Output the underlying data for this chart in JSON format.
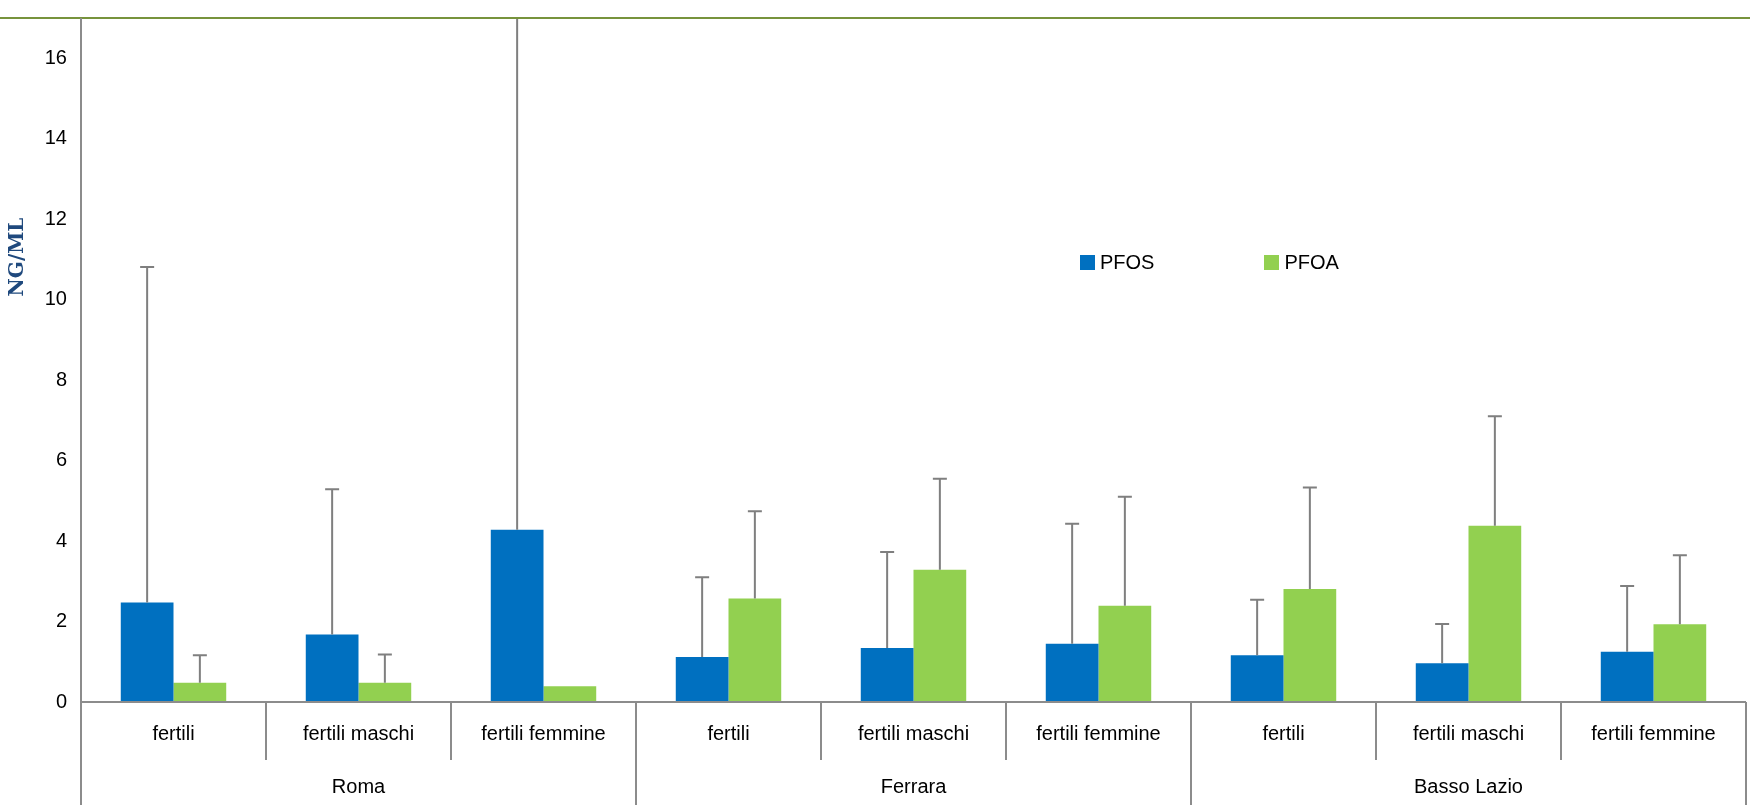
{
  "chart_data": {
    "type": "bar",
    "ylabel": "NG/ML",
    "categories": [
      "fertili",
      "fertili maschi",
      "fertili femmine",
      "fertili",
      "fertili maschi",
      "fertili femmine",
      "fertili",
      "fertili maschi",
      "fertili femmine"
    ],
    "annotations": [
      "Roma",
      "Ferrara",
      "Basso Lazio"
    ],
    "series": [
      {
        "name": "PFOS",
        "color": "#0070c0",
        "values": [
          2.47,
          1.68,
          4.28,
          1.12,
          1.34,
          1.45,
          1.16,
          0.96,
          1.25
        ],
        "errors": [
          [
            2.47,
            10.81
          ],
          [
            1.68,
            5.29
          ],
          [
            4.28,
            17
          ],
          [
            1.12,
            3.1
          ],
          [
            1.34,
            3.73
          ],
          [
            1.45,
            4.43
          ],
          [
            1.16,
            2.54
          ],
          [
            0.96,
            1.94
          ],
          [
            1.25,
            2.88
          ]
        ]
      },
      {
        "name": "PFOA",
        "color": "#92d050",
        "values": [
          0.48,
          0.48,
          0.39,
          2.57,
          3.29,
          2.39,
          2.81,
          4.38,
          1.93
        ],
        "errors": [
          [
            0.48,
            1.16
          ],
          [
            0.48,
            1.18
          ],
          null,
          [
            2.57,
            4.74
          ],
          [
            3.29,
            5.55
          ],
          [
            2.39,
            5.1
          ],
          [
            2.81,
            5.33
          ],
          [
            4.38,
            7.1
          ],
          [
            1.93,
            3.65
          ]
        ]
      }
    ],
    "ylim": [
      0,
      17
    ],
    "yticks": [
      0,
      2,
      4,
      6,
      8,
      10,
      12,
      14,
      16
    ],
    "grid": false,
    "legend": "right"
  }
}
